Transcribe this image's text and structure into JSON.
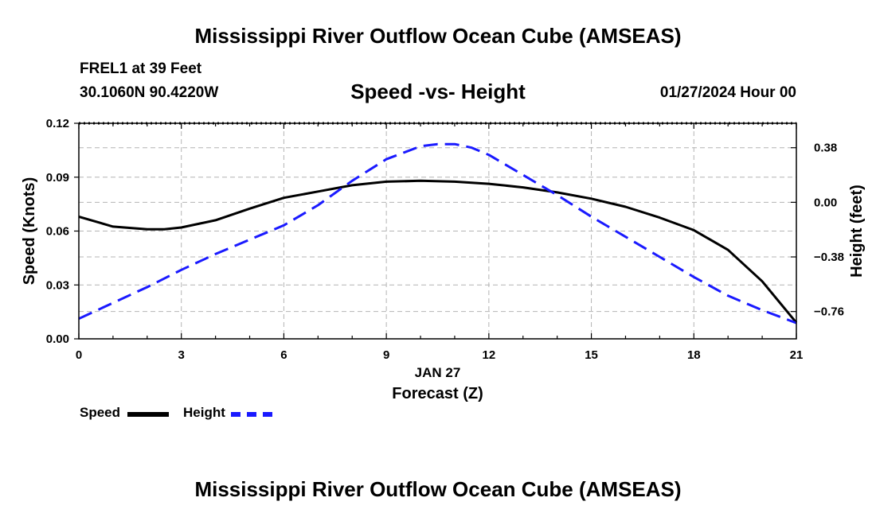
{
  "page": {
    "title": "Mississippi River Outflow Ocean Cube (AMSEAS)",
    "footer_title": "Mississippi River Outflow Ocean Cube (AMSEAS)",
    "station": "FREL1 at 39 Feet",
    "coordinates": "30.1060N  90.4220W",
    "subtitle": "Speed -vs- Height",
    "datetime": "01/27/2024 Hour 00"
  },
  "legend": {
    "speed_label": "Speed",
    "height_label": "Height"
  },
  "colors": {
    "speed": "#000000",
    "height": "#1a1aff",
    "grid": "#b4b4b4"
  },
  "chart_data": {
    "type": "line",
    "title": "Speed -vs- Height",
    "xlabel": "Forecast (Z)",
    "xlabel_date": "JAN 27",
    "ylabel": "Speed (Knots)",
    "y2label": "Height (feet)",
    "xlim": [
      0,
      21
    ],
    "ylim": [
      0,
      0.12
    ],
    "y2lim": [
      -0.95,
      0.55
    ],
    "x_ticks": [
      0,
      3,
      6,
      9,
      12,
      15,
      18,
      21
    ],
    "x_tick_labels": [
      "0",
      "3",
      "6",
      "9",
      "12",
      "15",
      "18",
      "21"
    ],
    "y_ticks": [
      0,
      0.03,
      0.06,
      0.09,
      0.12
    ],
    "y_tick_labels": [
      "0.00",
      "0.03",
      "0.06",
      "0.09",
      "0.12"
    ],
    "y2_ticks": [
      0.38,
      0,
      -0.38,
      -0.76
    ],
    "y2_tick_labels": [
      "0.38",
      "0.00",
      "−0.38",
      "−0.76"
    ],
    "grid": true,
    "legend_position": "bottom-left",
    "series": [
      {
        "name": "Speed",
        "axis": "left",
        "style": "solid",
        "x": [
          0,
          1,
          2,
          2.5,
          3,
          4,
          5,
          6,
          7,
          8,
          9,
          10,
          11,
          12,
          13,
          14,
          15,
          16,
          17,
          18,
          19,
          20,
          21
        ],
        "values": [
          0.068,
          0.0625,
          0.061,
          0.061,
          0.062,
          0.066,
          0.0725,
          0.0785,
          0.082,
          0.0855,
          0.0875,
          0.088,
          0.0875,
          0.0863,
          0.0843,
          0.0815,
          0.078,
          0.0735,
          0.0675,
          0.0605,
          0.0495,
          0.032,
          0.009
        ]
      },
      {
        "name": "Height",
        "axis": "right",
        "style": "dashed",
        "x": [
          0,
          1,
          2,
          3,
          4,
          5,
          6,
          7,
          8,
          9,
          10,
          10.5,
          11,
          11.5,
          12,
          13,
          14,
          15,
          16,
          17,
          18,
          19,
          20,
          21
        ],
        "values": [
          -0.81,
          -0.7,
          -0.59,
          -0.47,
          -0.36,
          -0.26,
          -0.16,
          -0.02,
          0.15,
          0.3,
          0.39,
          0.405,
          0.405,
          0.38,
          0.33,
          0.19,
          0.05,
          -0.1,
          -0.24,
          -0.38,
          -0.52,
          -0.65,
          -0.75,
          -0.84
        ]
      }
    ]
  }
}
